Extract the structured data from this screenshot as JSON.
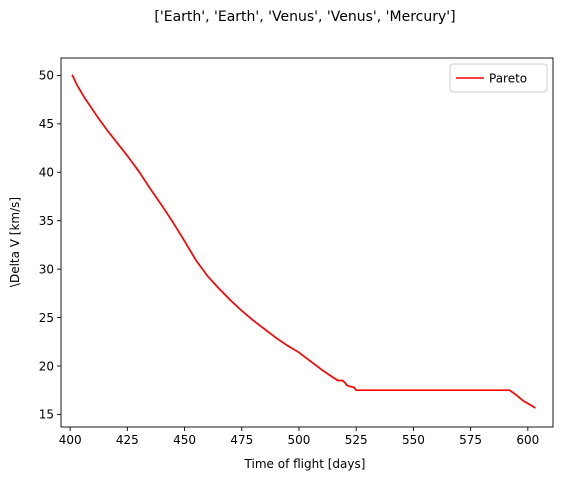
{
  "chart_data": {
    "type": "line",
    "title": "['Earth', 'Earth', 'Venus', 'Venus', 'Mercury']",
    "xlabel": "Time of flight [days]",
    "ylabel": "\\Delta V [km/s]",
    "xlim": [
      396,
      611
    ],
    "ylim": [
      13.7,
      51.8
    ],
    "xticks": [
      400,
      425,
      450,
      475,
      500,
      525,
      550,
      575,
      600
    ],
    "yticks": [
      15,
      20,
      25,
      30,
      35,
      40,
      45,
      50
    ],
    "grid": false,
    "legend_position": "top-right",
    "series": [
      {
        "name": "Pareto",
        "color": "#ff0000",
        "x": [
          401,
          402,
          403,
          404,
          406,
          408,
          412,
          416,
          420,
          425,
          430,
          435,
          440,
          445,
          450,
          455,
          460,
          465,
          470,
          475,
          480,
          485,
          490,
          495,
          500,
          501,
          505,
          510,
          515,
          517,
          519,
          520,
          521,
          522,
          524,
          525,
          526,
          530,
          540,
          550,
          560,
          570,
          580,
          585,
          590,
          592,
          595,
          598,
          601,
          603
        ],
        "y": [
          50.0,
          49.5,
          49.0,
          48.6,
          47.8,
          47.1,
          45.7,
          44.4,
          43.2,
          41.7,
          40.1,
          38.3,
          36.6,
          34.8,
          32.9,
          30.9,
          29.3,
          28.0,
          26.8,
          25.7,
          24.7,
          23.8,
          22.9,
          22.1,
          21.4,
          21.2,
          20.5,
          19.6,
          18.8,
          18.5,
          18.5,
          18.3,
          18.0,
          17.9,
          17.8,
          17.5,
          17.5,
          17.5,
          17.5,
          17.5,
          17.5,
          17.5,
          17.5,
          17.5,
          17.5,
          17.5,
          17.0,
          16.4,
          16.0,
          15.7
        ]
      }
    ]
  }
}
